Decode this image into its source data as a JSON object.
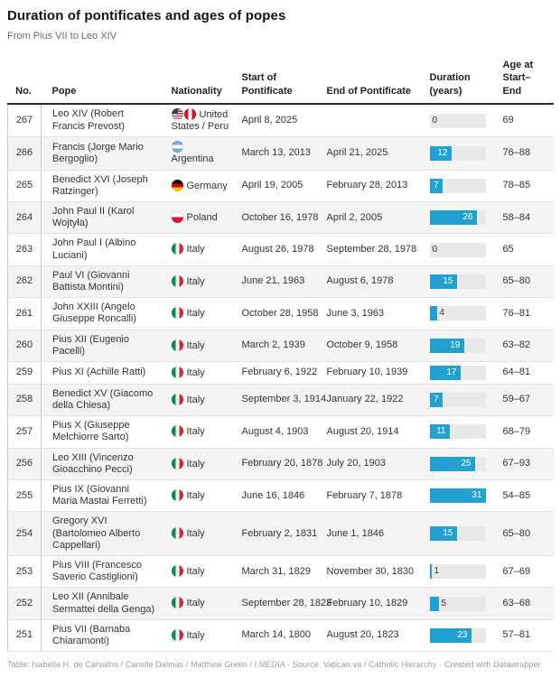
{
  "header": {
    "title": "Duration of pontificates and ages of popes",
    "subtitle": "From Pius VII to Leo XIV"
  },
  "columns": {
    "no": "No.",
    "pope": "Pope",
    "nationality": "Nationality",
    "start": "Start of Pontificate",
    "end": "End of Pontificate",
    "duration": "Duration (years)",
    "age": "Age at Start–End"
  },
  "colors": {
    "bar_fill": "#23a0d2",
    "bar_track": "#e8e8e8",
    "row_stripe": "#f4f4f4",
    "header_rule": "#2b2b2b"
  },
  "flag_icons": {
    "us": "united-states-flag-icon",
    "pe": "peru-flag-icon",
    "ar": "argentina-flag-icon",
    "de": "germany-flag-icon",
    "pl": "poland-flag-icon",
    "it": "italy-flag-icon"
  },
  "footer": {
    "text": "Table: Isabella H. de Carvalho / Camille Dalmas / Matthew Green / I.MEDIA · Source: Vatican.va / Catholic Hierarchy · Created with Datawrapper"
  },
  "chart_data": {
    "type": "table",
    "title": "Duration of pontificates and ages of popes",
    "subtitle": "From Pius VII to Leo XIV",
    "columns": [
      "No.",
      "Pope",
      "Nationality",
      "Start of Pontificate",
      "End of Pontificate",
      "Duration (years)",
      "Age at Start–End"
    ],
    "embedded_bar_column": "Duration (years)",
    "bar_range": [
      0,
      31
    ],
    "bar_label_inside_min": 7,
    "rows": [
      {
        "no": "267",
        "pope": "Leo XIV (Robert Francis Prevost)",
        "flags": [
          "us",
          "pe"
        ],
        "nationality": "United States / Peru",
        "start": "April 8, 2025",
        "end": "",
        "duration": 0,
        "age": "69"
      },
      {
        "no": "266",
        "pope": "Francis (Jorge Mario Bergoglio)",
        "flags": [
          "ar"
        ],
        "nationality": "Argentina",
        "start": "March 13, 2013",
        "end": "April 21, 2025",
        "duration": 12,
        "age": "76–88"
      },
      {
        "no": "265",
        "pope": "Benedict XVI (Joseph Ratzinger)",
        "flags": [
          "de"
        ],
        "nationality": "Germany",
        "start": "April 19, 2005",
        "end": "February 28, 2013",
        "duration": 7,
        "age": "78–85"
      },
      {
        "no": "264",
        "pope": "John Paul II (Karol Wojtyła)",
        "flags": [
          "pl"
        ],
        "nationality": "Poland",
        "start": "October 16, 1978",
        "end": "April 2, 2005",
        "duration": 26,
        "age": "58–84"
      },
      {
        "no": "263",
        "pope": "John Paul I (Albino Luciani)",
        "flags": [
          "it"
        ],
        "nationality": "Italy",
        "start": "August 26, 1978",
        "end": "September 28, 1978",
        "duration": 0,
        "age": "65"
      },
      {
        "no": "262",
        "pope": "Paul VI (Giovanni Battista Montini)",
        "flags": [
          "it"
        ],
        "nationality": "Italy",
        "start": "June 21, 1963",
        "end": "August 6, 1978",
        "duration": 15,
        "age": "65–80"
      },
      {
        "no": "261",
        "pope": "John XXIII (Angelo Giuseppe Roncalli)",
        "flags": [
          "it"
        ],
        "nationality": "Italy",
        "start": "October 28, 1958",
        "end": "June 3, 1963",
        "duration": 4,
        "age": "76–81"
      },
      {
        "no": "260",
        "pope": "Pius XII (Eugenio Pacelli)",
        "flags": [
          "it"
        ],
        "nationality": "Italy",
        "start": "March 2, 1939",
        "end": "October 9, 1958",
        "duration": 19,
        "age": "63–82"
      },
      {
        "no": "259",
        "pope": "Pius XI (Achille Ratti)",
        "flags": [
          "it"
        ],
        "nationality": "Italy",
        "start": "February 6, 1922",
        "end": "February 10, 1939",
        "duration": 17,
        "age": "64–81"
      },
      {
        "no": "258",
        "pope": "Benedict XV (Giacomo della Chiesa)",
        "flags": [
          "it"
        ],
        "nationality": "Italy",
        "start": "September 3, 1914",
        "end": "January 22, 1922",
        "duration": 7,
        "age": "59–67"
      },
      {
        "no": "257",
        "pope": "Pius X (Giuseppe Melchiorre Sarto)",
        "flags": [
          "it"
        ],
        "nationality": "Italy",
        "start": "August 4, 1903",
        "end": "August 20, 1914",
        "duration": 11,
        "age": "68–79"
      },
      {
        "no": "256",
        "pope": "Leo XIII (Vincenzo Gioacchino Pecci)",
        "flags": [
          "it"
        ],
        "nationality": "Italy",
        "start": "February 20, 1878",
        "end": "July 20, 1903",
        "duration": 25,
        "age": "67–93"
      },
      {
        "no": "255",
        "pope": "Pius IX (Giovanni Maria Mastai Ferretti)",
        "flags": [
          "it"
        ],
        "nationality": "Italy",
        "start": "June 16, 1846",
        "end": "February 7, 1878",
        "duration": 31,
        "age": "54–85"
      },
      {
        "no": "254",
        "pope": "Gregory XVI (Bartolomeo Alberto Cappellari)",
        "flags": [
          "it"
        ],
        "nationality": "Italy",
        "start": "February 2, 1831",
        "end": "June 1, 1846",
        "duration": 15,
        "age": "65–80"
      },
      {
        "no": "253",
        "pope": "Pius VIII (Francesco Saverio Castiglioni)",
        "flags": [
          "it"
        ],
        "nationality": "Italy",
        "start": "March 31, 1829",
        "end": "November 30, 1830",
        "duration": 1,
        "age": "67–69"
      },
      {
        "no": "252",
        "pope": "Leo XII (Annibale Sermattei della Genga)",
        "flags": [
          "it"
        ],
        "nationality": "Italy",
        "start": "September 28, 1823",
        "end": "February 10, 1829",
        "duration": 5,
        "age": "63–68"
      },
      {
        "no": "251",
        "pope": "Pius VII (Barnaba Chiaramonti)",
        "flags": [
          "it"
        ],
        "nationality": "Italy",
        "start": "March 14, 1800",
        "end": "August 20, 1823",
        "duration": 23,
        "age": "57–81"
      }
    ]
  }
}
